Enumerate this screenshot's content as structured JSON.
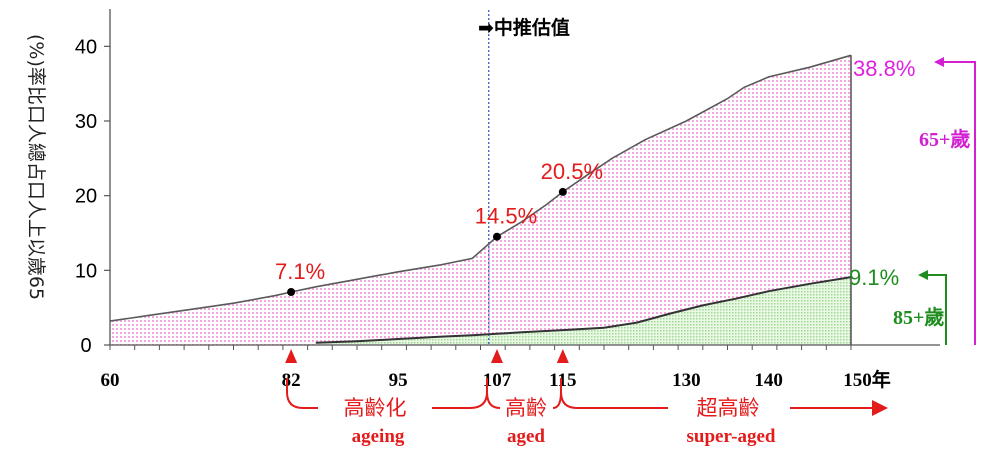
{
  "chart_data": {
    "type": "area",
    "ylabel": "(%)率比口人總占口人上以歲65",
    "ylim": [
      0,
      45
    ],
    "yticks": [
      0,
      10,
      20,
      30,
      40
    ],
    "xlim": [
      60,
      150
    ],
    "xticks": [
      {
        "value": 60,
        "label": "60"
      },
      {
        "value": 82,
        "label": "82"
      },
      {
        "value": 95,
        "label": "95"
      },
      {
        "value": 107,
        "label": "107"
      },
      {
        "value": 115,
        "label": "115"
      },
      {
        "value": 130,
        "label": "130"
      },
      {
        "value": 140,
        "label": "140"
      },
      {
        "value": 150,
        "label": "150年"
      }
    ],
    "series": [
      {
        "name": "65+歲",
        "color": "#ffc8f0",
        "points": [
          [
            60,
            3.2
          ],
          [
            65,
            4.0
          ],
          [
            70,
            4.8
          ],
          [
            75,
            5.6
          ],
          [
            80,
            6.6
          ],
          [
            82,
            7.1
          ],
          [
            85,
            7.8
          ],
          [
            90,
            8.8
          ],
          [
            95,
            9.8
          ],
          [
            100,
            10.7
          ],
          [
            104,
            11.6
          ],
          [
            107,
            14.5
          ],
          [
            110,
            16.5
          ],
          [
            113,
            18.8
          ],
          [
            115,
            20.5
          ],
          [
            118,
            22.8
          ],
          [
            121,
            25.0
          ],
          [
            125,
            27.5
          ],
          [
            130,
            30.0
          ],
          [
            135,
            33.0
          ],
          [
            137,
            34.5
          ],
          [
            140,
            35.9
          ],
          [
            145,
            37.2
          ],
          [
            150,
            38.8
          ]
        ]
      },
      {
        "name": "85+歲",
        "color": "#cef2c8",
        "points": [
          [
            85,
            0.3
          ],
          [
            90,
            0.5
          ],
          [
            95,
            0.8
          ],
          [
            100,
            1.1
          ],
          [
            104,
            1.3
          ],
          [
            107,
            1.5
          ],
          [
            110,
            1.7
          ],
          [
            115,
            2.0
          ],
          [
            120,
            2.3
          ],
          [
            124,
            3.0
          ],
          [
            128,
            4.2
          ],
          [
            132,
            5.3
          ],
          [
            136,
            6.2
          ],
          [
            140,
            7.2
          ],
          [
            145,
            8.2
          ],
          [
            150,
            9.1
          ]
        ]
      }
    ],
    "point_labels": [
      {
        "x": 82,
        "y": 7.1,
        "label": "7.1%"
      },
      {
        "x": 107,
        "y": 14.5,
        "label": "14.5%"
      },
      {
        "x": 115,
        "y": 20.5,
        "label": "20.5%"
      }
    ],
    "end_labels": [
      {
        "series": "65+歲",
        "label": "38.8%",
        "color": "#e020e0"
      },
      {
        "series": "85+歲",
        "label": "9.1%",
        "color": "#1e8c1e"
      }
    ],
    "projection": {
      "x": 106,
      "label": "➡中推估值"
    },
    "stages": [
      {
        "from": 82,
        "to": 107,
        "cn": "高齡化",
        "en": "ageing"
      },
      {
        "from": 107,
        "to": 115,
        "cn": "高齡",
        "en": "aged"
      },
      {
        "from": 115,
        "to": 150,
        "cn": "超高齡",
        "en": "super-aged"
      }
    ],
    "markers": [
      82,
      107,
      115
    ]
  }
}
